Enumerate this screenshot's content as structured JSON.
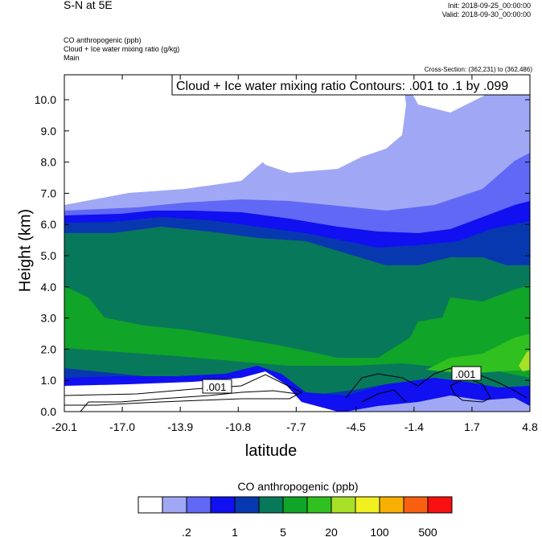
{
  "header": {
    "left_title": "S-N at 5E",
    "init": "Init: 2018-09-25_00:00:00",
    "valid": "Valid: 2018-09-30_00:00:00",
    "field1": "CO anthropogenic   (ppb)",
    "field2": "Cloud + Ice water mixing ratio   (g/kg)",
    "field3": "Main",
    "cross_section": "Cross-Section: (362,231) to (362,486)"
  },
  "chart_data": {
    "type": "heatmap",
    "title": "",
    "contour_label": "Cloud + Ice water mixing ratio Contours: .001 to .1 by .099",
    "xlabel": "latitude",
    "ylabel": "Height (km)",
    "x_ticks": [
      "-20.1",
      "-17.0",
      "-13.9",
      "-10.8",
      "-7.7",
      "-4.5",
      "-1.4",
      "1.7",
      "4.8"
    ],
    "y_ticks": [
      "0.0",
      "1.0",
      "2.0",
      "3.0",
      "4.0",
      "5.0",
      "6.0",
      "7.0",
      "8.0",
      "9.0",
      "10.0"
    ],
    "xlim": [
      -20.1,
      4.8
    ],
    "ylim": [
      0.0,
      10.8
    ],
    "contour_values": [
      ".001",
      ".001"
    ],
    "colorbar": {
      "title": "CO anthropogenic  (ppb)",
      "colors": [
        "#ffffff",
        "#a0a8f5",
        "#6068f5",
        "#1010f0",
        "#0838b0",
        "#08785a",
        "#10a428",
        "#30c020",
        "#a8e028",
        "#f0f020",
        "#f8b000",
        "#f86010",
        "#f81010"
      ],
      "labels": [
        ".2",
        "1",
        "5",
        "20",
        "100",
        "500"
      ]
    }
  }
}
